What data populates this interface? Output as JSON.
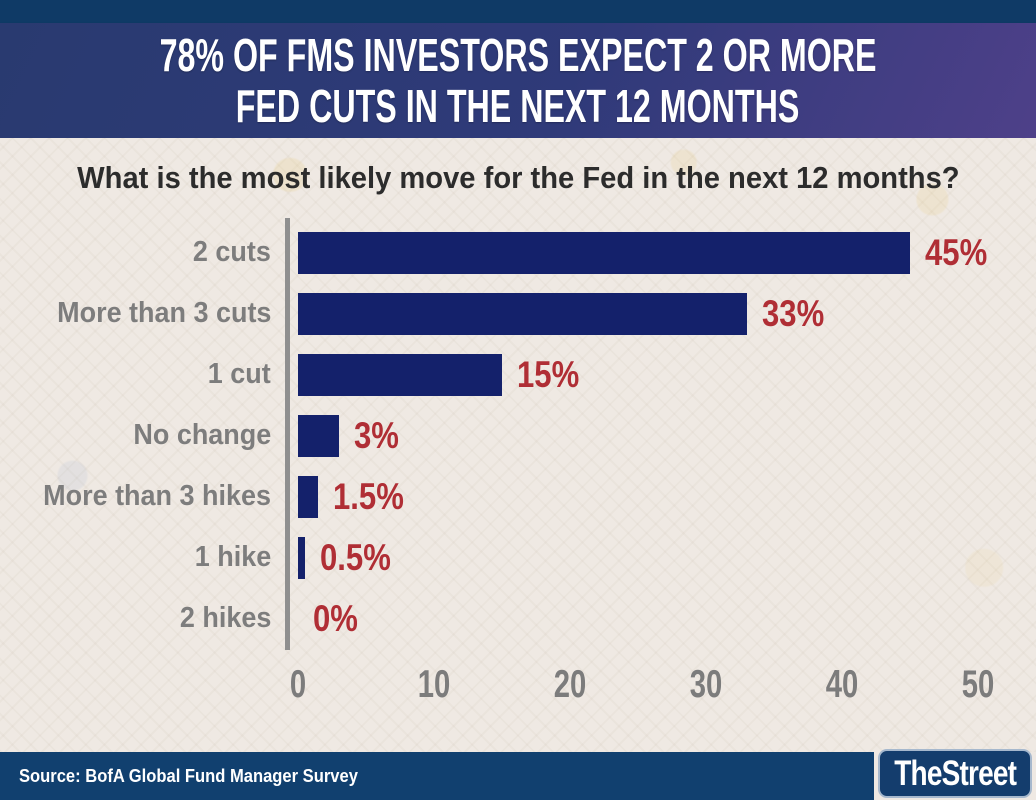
{
  "header": {
    "title_line1": "78% OF FMS INVESTORS EXPECT 2 OR MORE",
    "title_line2": "FED CUTS IN THE NEXT 12 MONTHS"
  },
  "chart_data": {
    "type": "bar",
    "orientation": "horizontal",
    "title": "What is the most likely move for the Fed in the next 12 months?",
    "categories": [
      "2 cuts",
      "More than 3 cuts",
      "1 cut",
      "No change",
      "More than 3 hikes",
      "1 hike",
      "2 hikes"
    ],
    "values": [
      45,
      33,
      15,
      3,
      1.5,
      0.5,
      0
    ],
    "value_labels": [
      "45%",
      "33%",
      "15%",
      "3%",
      "1.5%",
      "0.5%",
      "0%"
    ],
    "x_ticks": [
      0,
      10,
      20,
      30,
      40,
      50
    ],
    "xlim": [
      0,
      50
    ],
    "xlabel": "",
    "ylabel": "",
    "grid": false,
    "legend": "none"
  },
  "footer": {
    "source": "Source: BofA Global Fund Manager Survey",
    "logo": "TheStreet"
  },
  "colors": {
    "bar_navy": "#14216b",
    "value_red": "#b02e35",
    "label_gray": "#7d7d7d",
    "tick_gray": "#7c7c7c",
    "strip_navy": "#0f3a66",
    "footer_navy": "#11406f",
    "header_gradient_start": "#293a70",
    "header_gradient_end": "#4e4089",
    "background_cream": "#efe9e3",
    "title_white": "#ffffff"
  }
}
